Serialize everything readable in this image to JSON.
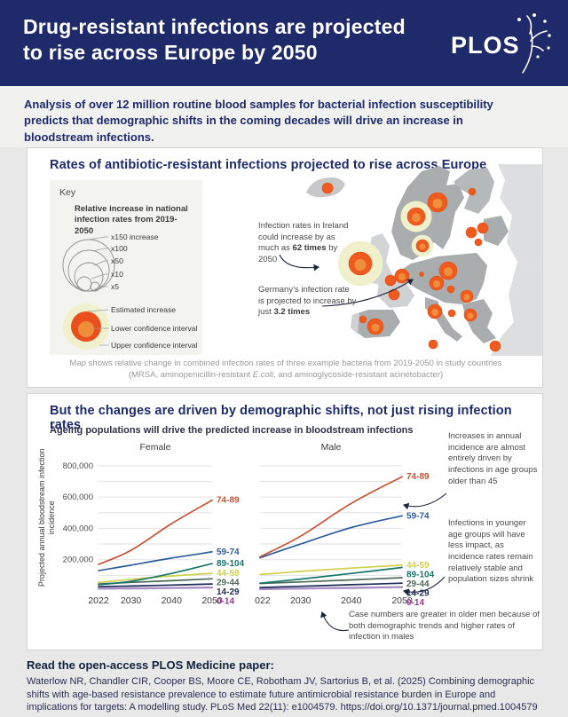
{
  "header": {
    "title_line1": "Drug-resistant infections are projected",
    "title_line2": "to rise across Europe by 2050",
    "logo_text": "PLOS"
  },
  "intro": {
    "text": "Analysis of over 12 million routine blood samples for bacterial infection susceptibility predicts that demographic shifts in the coming decades will drive an increase in bloodstream infections."
  },
  "map_card": {
    "title": "Rates of antibiotic-resistant infections projected to rise across Europe",
    "key": {
      "label": "Key",
      "heading": "Relative increase in national infection rates from 2019-2050",
      "size_labels": [
        "x150 increase",
        "x100",
        "x50",
        "x10",
        "x5"
      ],
      "bubble_labels": [
        "Estimated increase",
        "Lower confidence interval",
        "Upper confidence interval"
      ]
    },
    "annotations": {
      "ireland_pre": "Infection rates in Ireland could increase by as much as ",
      "ireland_bold": "62 times",
      "ireland_post": " by 2050",
      "germany_pre": "Germany’s infection rate is projected to increase by just ",
      "germany_bold": "3.2 times",
      "germany_post": ""
    },
    "caption_line1": "Map shows relative change in combined infection rates of three example bacteria from 2019-2050 in study countries",
    "caption_line2_pre": "(MRSA, aminopenicillin-resistant ",
    "caption_line2_italic": "E.coli",
    "caption_line2_post": ", and aminoglycoside-resistant acinetobacter)",
    "colors": {
      "bubble": "#ef5a1f",
      "bubble_inner": "#ef8e3d",
      "halo": "#f0f0cd"
    },
    "markers": [
      {
        "x": 76,
        "y": 29,
        "r": 6,
        "halo": 0
      },
      {
        "x": 200,
        "y": 45,
        "r": 11,
        "halo": 0
      },
      {
        "x": 176,
        "y": 61,
        "r": 10,
        "halo": 1
      },
      {
        "x": 239,
        "y": 33,
        "r": 4,
        "halo": 0
      },
      {
        "x": 251,
        "y": 74,
        "r": 6,
        "halo": 0
      },
      {
        "x": 238,
        "y": 79,
        "r": 6,
        "halo": 0
      },
      {
        "x": 246,
        "y": 90,
        "r": 4,
        "halo": 0
      },
      {
        "x": 183,
        "y": 94,
        "r": 7,
        "halo": 1
      },
      {
        "x": 113,
        "y": 114,
        "r": 13,
        "halo": 2
      },
      {
        "x": 160,
        "y": 128,
        "r": 8,
        "halo": 0
      },
      {
        "x": 147,
        "y": 133,
        "r": 6,
        "halo": 0
      },
      {
        "x": 182,
        "y": 126,
        "r": 2.5,
        "halo": 0
      },
      {
        "x": 212,
        "y": 122,
        "r": 10,
        "halo": 0
      },
      {
        "x": 199,
        "y": 136,
        "r": 8,
        "halo": 0
      },
      {
        "x": 215,
        "y": 143,
        "r": 4,
        "halo": 0
      },
      {
        "x": 233,
        "y": 151,
        "r": 7,
        "halo": 0
      },
      {
        "x": 151,
        "y": 149,
        "r": 6,
        "halo": 0
      },
      {
        "x": 237,
        "y": 172,
        "r": 7,
        "halo": 0
      },
      {
        "x": 197,
        "y": 168,
        "r": 8,
        "halo": 0
      },
      {
        "x": 216,
        "y": 170,
        "r": 4,
        "halo": 0
      },
      {
        "x": 130,
        "y": 185,
        "r": 9,
        "halo": 0
      },
      {
        "x": 116,
        "y": 177,
        "r": 4,
        "halo": 0
      },
      {
        "x": 195,
        "y": 205,
        "r": 5,
        "halo": 0
      },
      {
        "x": 265,
        "y": 207,
        "r": 6,
        "halo": 0
      }
    ]
  },
  "chart_card": {
    "title": "But the changes are driven by demographic shifts, not just rising infection rates",
    "subtitle": "Ageing populations will drive the predicted increase in bloodstream infections",
    "ylabel": "Projected annual bloodstream infection incidence",
    "annotations": {
      "older": "Increases in annual incidence are almost entirely driven by infections in age groups older than 45",
      "younger": "Infections in younger age groups will have less impact, as incidence rates remain relatively stable and population sizes shrink",
      "men": "Case numbers are greater in older men because of both demographic trends and higher rates of infection in males"
    }
  },
  "chart_data": {
    "type": "line",
    "x": [
      2022,
      2030,
      2040,
      2050
    ],
    "xlabel": "",
    "ylabel": "Projected annual bloodstream infection incidence",
    "ylim": [
      0,
      850000
    ],
    "yticks": [
      200000,
      400000,
      600000,
      800000
    ],
    "grid": true,
    "legend_position": "line-end-labels",
    "panels": [
      {
        "title": "Female",
        "series": [
          {
            "name": "74-89",
            "color": "#c65133",
            "values": [
              170000,
              260000,
              430000,
              580000
            ]
          },
          {
            "name": "59-74",
            "color": "#2e5d9e",
            "values": [
              130000,
              165000,
              210000,
              250000
            ]
          },
          {
            "name": "89-104",
            "color": "#16756b",
            "values": [
              40000,
              62000,
              112000,
              175000
            ]
          },
          {
            "name": "44-59",
            "color": "#cfd14c",
            "values": [
              55000,
              75000,
              96000,
              113000
            ]
          },
          {
            "name": "29-44",
            "color": "#4f6a59",
            "values": [
              45000,
              55000,
              66000,
              78000
            ]
          },
          {
            "name": "14-29",
            "color": "#1d2b56",
            "values": [
              28000,
              32000,
              38000,
              45000
            ]
          },
          {
            "name": "0-14",
            "color": "#993a92",
            "line_color": "#a88fc6",
            "values": [
              15000,
              17000,
              19000,
              22000
            ]
          }
        ]
      },
      {
        "title": "Male",
        "series": [
          {
            "name": "74-89",
            "color": "#c65133",
            "values": [
              218000,
              350000,
              560000,
              730000
            ]
          },
          {
            "name": "59-74",
            "color": "#2e5d9e",
            "values": [
              212000,
              300000,
              405000,
              480000
            ]
          },
          {
            "name": "44-59",
            "color": "#cfd14c",
            "values": [
              105000,
              125000,
              146000,
              165000
            ]
          },
          {
            "name": "89-104",
            "color": "#16756b",
            "values": [
              50000,
              76000,
              112000,
              150000
            ]
          },
          {
            "name": "29-44",
            "color": "#4f6a59",
            "values": [
              48000,
              58000,
              71000,
              85000
            ]
          },
          {
            "name": "14-29",
            "color": "#1d2b56",
            "values": [
              22000,
              30000,
              40000,
              50000
            ]
          },
          {
            "name": "0-14",
            "color": "#993a92",
            "line_color": "#a88fc6",
            "values": [
              12000,
              16000,
              20000,
              25000
            ]
          }
        ]
      }
    ]
  },
  "footer": {
    "heading": "Read the open-access PLOS Medicine paper:",
    "citation": "Waterlow NR, Chandler CIR, Cooper BS, Moore CE, Robotham JV, Sartorius B, et al. (2025) Combining demographic shifts with age-based resistance prevalence to estimate future antimicrobial resistance burden in Europe and implications for targets: A modelling study. PLoS Med 22(11): e1004579. https://doi.org/10.1371/journal.pmed.1004579"
  }
}
